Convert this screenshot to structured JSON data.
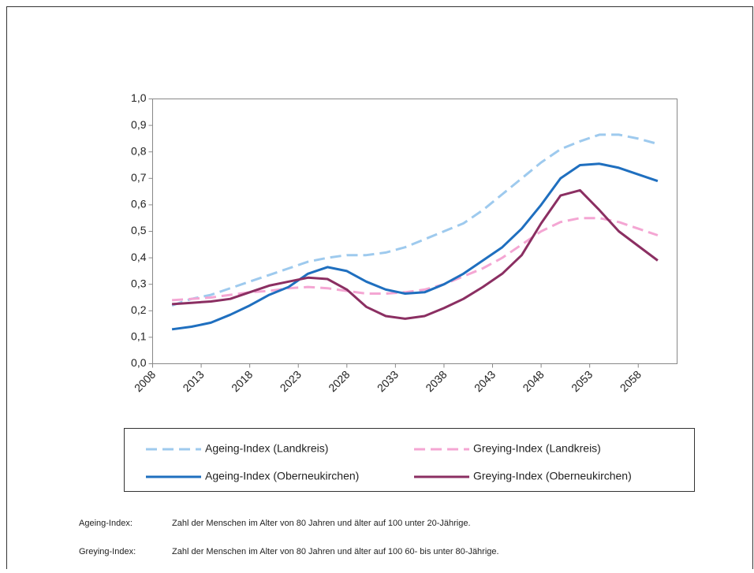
{
  "chart_data": {
    "type": "line",
    "x": [
      2010,
      2012,
      2014,
      2016,
      2018,
      2020,
      2022,
      2024,
      2026,
      2028,
      2030,
      2032,
      2034,
      2036,
      2038,
      2040,
      2042,
      2044,
      2046,
      2048,
      2050,
      2052,
      2054,
      2056,
      2058,
      2060
    ],
    "series": [
      {
        "name": "Ageing-Index (Landkreis)",
        "color": "#9ecaee",
        "style": "dashed",
        "values": [
          0.22,
          0.245,
          0.26,
          0.285,
          0.31,
          0.335,
          0.36,
          0.385,
          0.4,
          0.41,
          0.41,
          0.42,
          0.44,
          0.47,
          0.5,
          0.53,
          0.58,
          0.64,
          0.7,
          0.76,
          0.81,
          0.84,
          0.865,
          0.865,
          0.85,
          0.83
        ]
      },
      {
        "name": "Greying-Index (Landkreis)",
        "color": "#f4a6d3",
        "style": "dashed",
        "values": [
          0.24,
          0.245,
          0.25,
          0.26,
          0.27,
          0.275,
          0.285,
          0.29,
          0.285,
          0.275,
          0.265,
          0.265,
          0.27,
          0.28,
          0.3,
          0.33,
          0.36,
          0.4,
          0.45,
          0.5,
          0.535,
          0.55,
          0.55,
          0.535,
          0.51,
          0.485
        ]
      },
      {
        "name": "Ageing-Index (Oberneukirchen)",
        "color": "#1f6fbf",
        "style": "solid",
        "values": [
          0.13,
          0.14,
          0.155,
          0.185,
          0.22,
          0.26,
          0.29,
          0.34,
          0.365,
          0.35,
          0.31,
          0.28,
          0.265,
          0.27,
          0.3,
          0.34,
          0.39,
          0.44,
          0.51,
          0.6,
          0.7,
          0.75,
          0.755,
          0.74,
          0.715,
          0.69
        ]
      },
      {
        "name": "Greying-Index (Oberneukirchen)",
        "color": "#8b2f62",
        "style": "solid",
        "values": [
          0.225,
          0.23,
          0.235,
          0.245,
          0.27,
          0.295,
          0.31,
          0.325,
          0.32,
          0.28,
          0.215,
          0.18,
          0.17,
          0.18,
          0.21,
          0.245,
          0.29,
          0.34,
          0.41,
          0.53,
          0.635,
          0.655,
          0.58,
          0.5,
          0.445,
          0.39
        ]
      }
    ],
    "xlim": [
      2008,
      2062
    ],
    "xticks": [
      2008,
      2013,
      2018,
      2023,
      2028,
      2033,
      2038,
      2043,
      2048,
      2053,
      2058
    ],
    "ylim": [
      0,
      1
    ],
    "yticks": [
      {
        "value": 0,
        "label": "0,0"
      },
      {
        "value": 0.1,
        "label": "0,1"
      },
      {
        "value": 0.2,
        "label": "0,2"
      },
      {
        "value": 0.3,
        "label": "0,3"
      },
      {
        "value": 0.4,
        "label": "0,4"
      },
      {
        "value": 0.5,
        "label": "0,5"
      },
      {
        "value": 0.6,
        "label": "0,6"
      },
      {
        "value": 0.7,
        "label": "0,7"
      },
      {
        "value": 0.8,
        "label": "0,8"
      },
      {
        "value": 0.9,
        "label": "0,9"
      },
      {
        "value": 1,
        "label": "1,0"
      }
    ],
    "notes": [
      {
        "term": "Ageing-Index:",
        "text": "Zahl der Menschen im Alter von 80 Jahren und älter auf 100 unter 20-Jährige."
      },
      {
        "term": "Greying-Index:",
        "text": "Zahl der Menschen im Alter von 80 Jahren und älter auf 100 60- bis unter 80-Jährige."
      }
    ]
  }
}
